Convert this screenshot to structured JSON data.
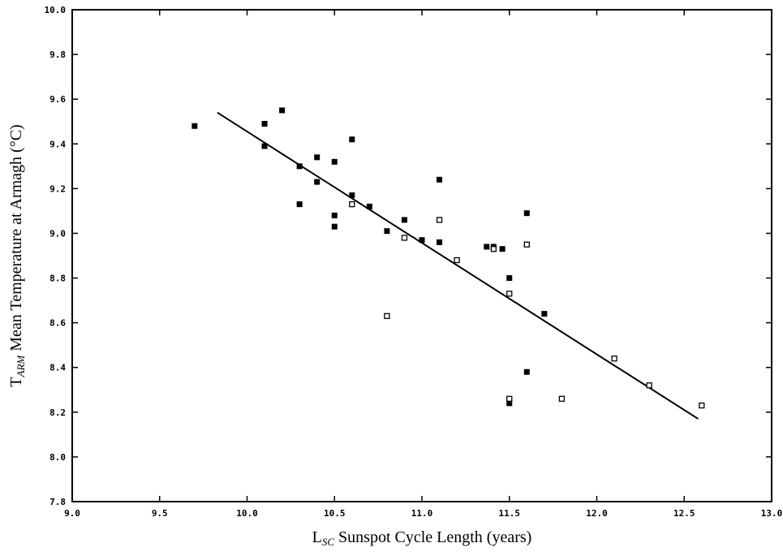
{
  "chart_data": {
    "type": "scatter",
    "title": "",
    "xlabel": {
      "main": "L",
      "sub": "SC",
      "rest": " Sunspot Cycle Length (years)"
    },
    "ylabel": {
      "main": "T",
      "sub": "ARM",
      "rest": " Mean Temperature at Armagh (°C)"
    },
    "xlim": [
      9.0,
      13.0
    ],
    "ylim": [
      7.8,
      10.0
    ],
    "x_ticks": [
      "9.0",
      "9.5",
      "10.0",
      "10.5",
      "11.0",
      "11.5",
      "12.0",
      "12.5",
      "13.0"
    ],
    "y_ticks": [
      "7.8",
      "8.0",
      "8.2",
      "8.4",
      "8.6",
      "8.8",
      "9.0",
      "9.2",
      "9.4",
      "9.6",
      "9.8",
      "10.0"
    ],
    "grid": false,
    "series": [
      {
        "marker": "filled-square",
        "points": [
          [
            9.7,
            9.48
          ],
          [
            10.1,
            9.49
          ],
          [
            10.1,
            9.39
          ],
          [
            10.2,
            9.55
          ],
          [
            10.3,
            9.3
          ],
          [
            10.3,
            9.13
          ],
          [
            10.4,
            9.34
          ],
          [
            10.4,
            9.23
          ],
          [
            10.5,
            9.32
          ],
          [
            10.5,
            9.08
          ],
          [
            10.5,
            9.03
          ],
          [
            10.6,
            9.42
          ],
          [
            10.6,
            9.17
          ],
          [
            10.7,
            9.12
          ],
          [
            10.8,
            9.01
          ],
          [
            10.9,
            9.06
          ],
          [
            11.0,
            8.97
          ],
          [
            11.1,
            8.96
          ],
          [
            11.1,
            9.24
          ],
          [
            11.37,
            8.94
          ],
          [
            11.41,
            8.94
          ],
          [
            11.46,
            8.93
          ],
          [
            11.5,
            8.8
          ],
          [
            11.5,
            8.24
          ],
          [
            11.6,
            9.09
          ],
          [
            11.6,
            8.38
          ],
          [
            11.7,
            8.64
          ]
        ]
      },
      {
        "marker": "open-square",
        "points": [
          [
            10.6,
            9.13
          ],
          [
            10.8,
            8.63
          ],
          [
            10.9,
            8.98
          ],
          [
            11.1,
            9.06
          ],
          [
            11.2,
            8.88
          ],
          [
            11.41,
            8.93
          ],
          [
            11.5,
            8.73
          ],
          [
            11.5,
            8.26
          ],
          [
            11.6,
            8.95
          ],
          [
            11.8,
            8.26
          ],
          [
            12.1,
            8.44
          ],
          [
            12.3,
            8.32
          ],
          [
            12.6,
            8.23
          ]
        ]
      }
    ],
    "fit_line": {
      "x": [
        9.83,
        12.58
      ],
      "y": [
        9.54,
        8.17
      ]
    }
  }
}
